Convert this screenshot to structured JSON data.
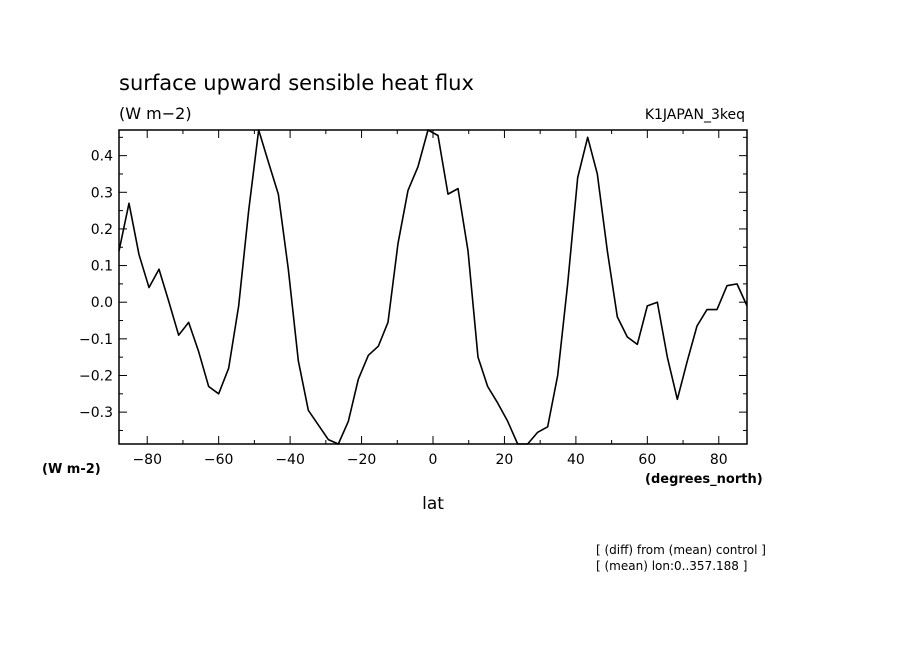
{
  "chart_data": {
    "type": "line",
    "title": "surface upward sensible heat flux",
    "units_label": "(W m−2)",
    "experiment_label": "K1JAPAN_3keq",
    "xlabel": "lat",
    "x_units": "(degrees_north)",
    "y_units": "(W m-2)",
    "xlim": [
      -87.9,
      87.9
    ],
    "ylim": [
      -0.387,
      0.47
    ],
    "x_ticks": [
      -80,
      -60,
      -40,
      -20,
      0,
      20,
      40,
      60,
      80
    ],
    "x_tick_labels": [
      "−80",
      "−60",
      "−40",
      "−20",
      "0",
      "20",
      "40",
      "60",
      "80"
    ],
    "y_ticks": [
      0.4,
      0.3,
      0.2,
      0.1,
      0.0,
      -0.1,
      -0.2,
      -0.3
    ],
    "y_tick_labels": [
      "0.4",
      "0.3",
      "0.2",
      "0.1",
      "0.0",
      "−0.1",
      "−0.2",
      "−0.3"
    ],
    "grid": false,
    "x": [
      -87.9,
      -85.1,
      -82.3,
      -79.5,
      -76.7,
      -73.9,
      -71.2,
      -68.4,
      -65.6,
      -62.8,
      -60.0,
      -57.2,
      -54.4,
      -51.6,
      -48.8,
      -46.0,
      -43.3,
      -40.5,
      -37.7,
      -34.9,
      -32.1,
      -29.3,
      -26.5,
      -23.7,
      -20.9,
      -18.1,
      -15.3,
      -12.6,
      -9.8,
      -7.0,
      -4.2,
      -1.4,
      1.4,
      4.2,
      7.0,
      9.8,
      12.6,
      15.3,
      18.1,
      20.9,
      23.7,
      26.5,
      29.3,
      32.1,
      34.9,
      37.7,
      40.5,
      43.3,
      46.0,
      48.8,
      51.6,
      54.4,
      57.2,
      60.0,
      62.8,
      65.6,
      68.4,
      71.2,
      73.9,
      76.7,
      79.5,
      82.3,
      85.1,
      87.9
    ],
    "series": [
      {
        "values": [
          0.14,
          0.27,
          0.13,
          0.04,
          0.09,
          0.0,
          -0.09,
          -0.055,
          -0.135,
          -0.23,
          -0.25,
          -0.18,
          -0.01,
          0.25,
          0.47,
          0.38,
          0.295,
          0.09,
          -0.16,
          -0.295,
          -0.335,
          -0.375,
          -0.387,
          -0.325,
          -0.21,
          -0.145,
          -0.12,
          -0.055,
          0.16,
          0.305,
          0.37,
          0.47,
          0.455,
          0.295,
          0.31,
          0.14,
          -0.15,
          -0.23,
          -0.275,
          -0.325,
          -0.387,
          -0.387,
          -0.355,
          -0.34,
          -0.2,
          0.05,
          0.34,
          0.45,
          0.35,
          0.14,
          -0.04,
          -0.095,
          -0.115,
          -0.01,
          0.0,
          -0.15,
          -0.265,
          -0.16,
          -0.065,
          -0.02,
          -0.02,
          0.045,
          0.05,
          -0.01
        ]
      }
    ],
    "annotations": [
      "[ (diff) from (mean) control ]",
      "[ (mean) lon:0..357.188 ]"
    ]
  }
}
